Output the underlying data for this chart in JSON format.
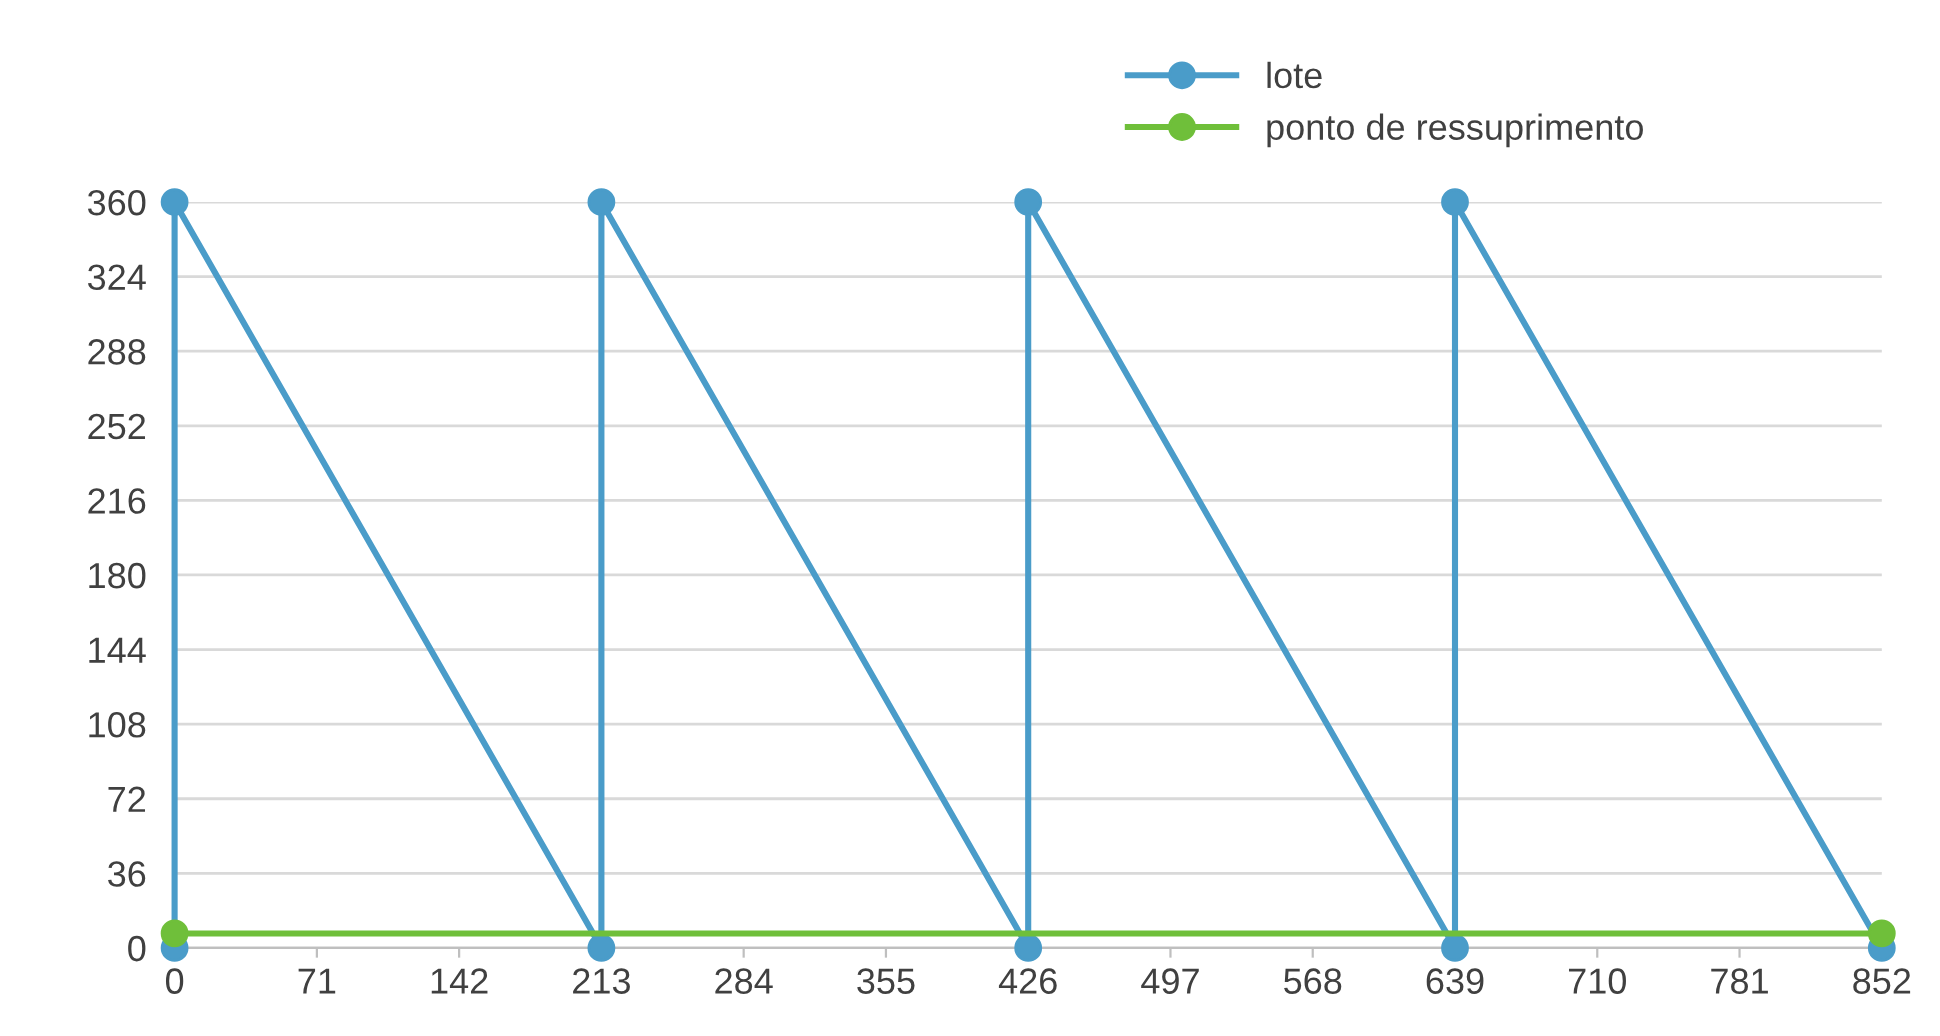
{
  "chart_data": {
    "type": "line",
    "x": [
      0,
      0,
      213,
      213,
      426,
      426,
      639,
      639,
      852
    ],
    "series": [
      {
        "name": "lote",
        "color": "#4a9cc9",
        "values": [
          0,
          360,
          0,
          360,
          0,
          360,
          0,
          360,
          0
        ]
      },
      {
        "name": "ponto de ressuprimento",
        "color": "#6fbf3a",
        "x": [
          0,
          852
        ],
        "values": [
          7,
          7
        ]
      }
    ],
    "xlim": [
      0,
      852
    ],
    "xticks": [
      0,
      71,
      142,
      213,
      284,
      355,
      426,
      497,
      568,
      639,
      710,
      781,
      852
    ],
    "ylim": [
      0,
      360
    ],
    "yticks": [
      0,
      36,
      72,
      108,
      144,
      180,
      216,
      252,
      288,
      324,
      360
    ],
    "grid": "y",
    "legend": "top right",
    "marker": "circle",
    "line_style": "solid"
  }
}
